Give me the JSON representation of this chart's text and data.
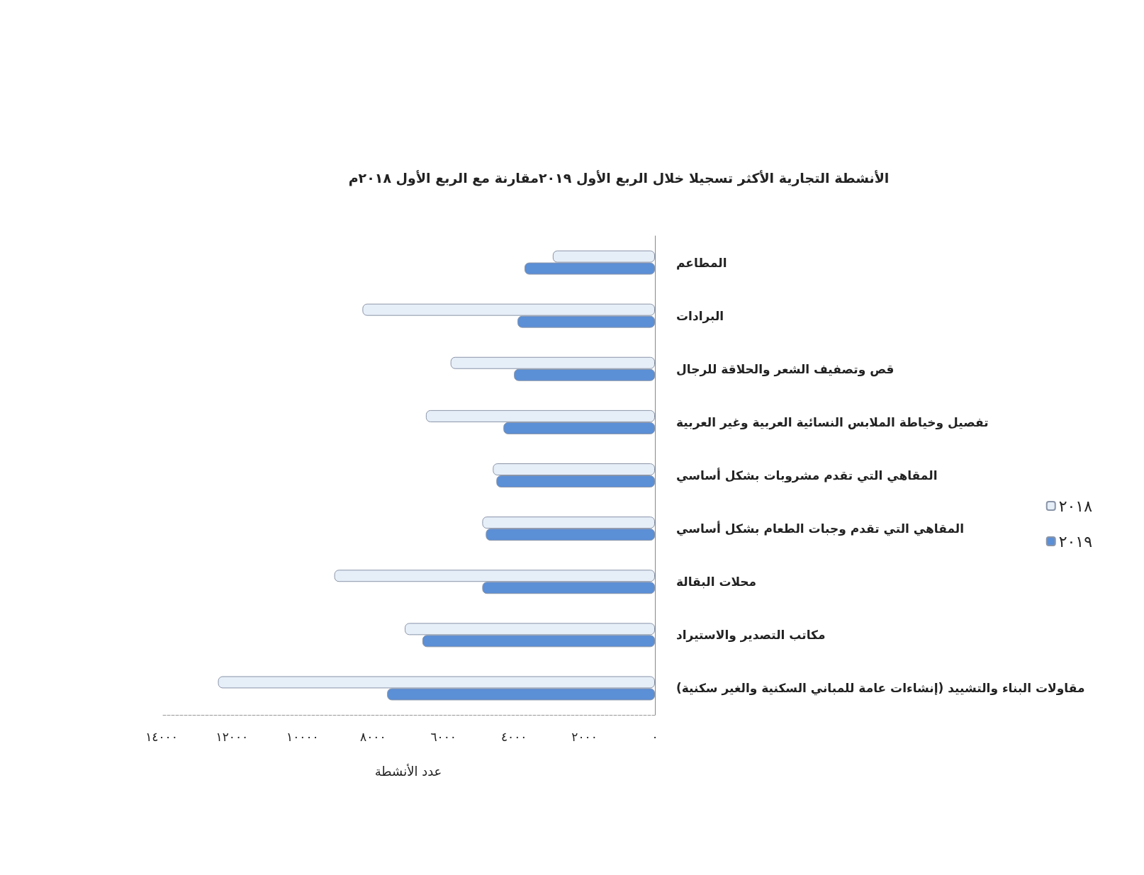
{
  "chart_data": {
    "type": "bar",
    "orientation": "horizontal",
    "title": "الأنشطة التجارية الأكثر تسجيلا خلال الربع الأول ٢٠١٩مقارنة مع الربع الأول ٢٠١٨م",
    "xlabel": "عدد الأنشطة",
    "categories": [
      "المطاعم",
      "البرادات",
      "قص وتصفيف الشعر والحلاقة للرجال",
      "تفصيل وخياطة الملابس النسائية العربية وغير العربية",
      "المقاهي التي تقدم مشروبات بشكل أساسي",
      "المقاهي التي تقدم وجبات الطعام بشكل أساسي",
      "محلات البقالة",
      "مكاتب التصدير والاستيراد",
      "مقاولات البناء والتشييد (إنشاءات عامة للمباني السكنية والغير سكنية)"
    ],
    "series": [
      {
        "name": "٢٠١٨",
        "color": "#e6eef8",
        "values": [
          2900,
          8300,
          5800,
          6500,
          4600,
          4900,
          9100,
          7100,
          12400
        ]
      },
      {
        "name": "٢٠١٩",
        "color": "#5b8fd6",
        "values": [
          3700,
          3900,
          4000,
          4300,
          4500,
          4800,
          4900,
          6600,
          7600
        ]
      }
    ],
    "xlim": [
      14000,
      0
    ],
    "xticks": [
      {
        "value": 0,
        "label": "٠"
      },
      {
        "value": 2000,
        "label": "٢٠٠٠"
      },
      {
        "value": 4000,
        "label": "٤٠٠٠"
      },
      {
        "value": 6000,
        "label": "٦٠٠٠"
      },
      {
        "value": 8000,
        "label": "٨٠٠٠"
      },
      {
        "value": 10000,
        "label": "١٠٠٠٠"
      },
      {
        "value": 12000,
        "label": "١٢٠٠٠"
      },
      {
        "value": 14000,
        "label": "١٤٠٠٠"
      }
    ],
    "grid": false,
    "legend": "right"
  }
}
